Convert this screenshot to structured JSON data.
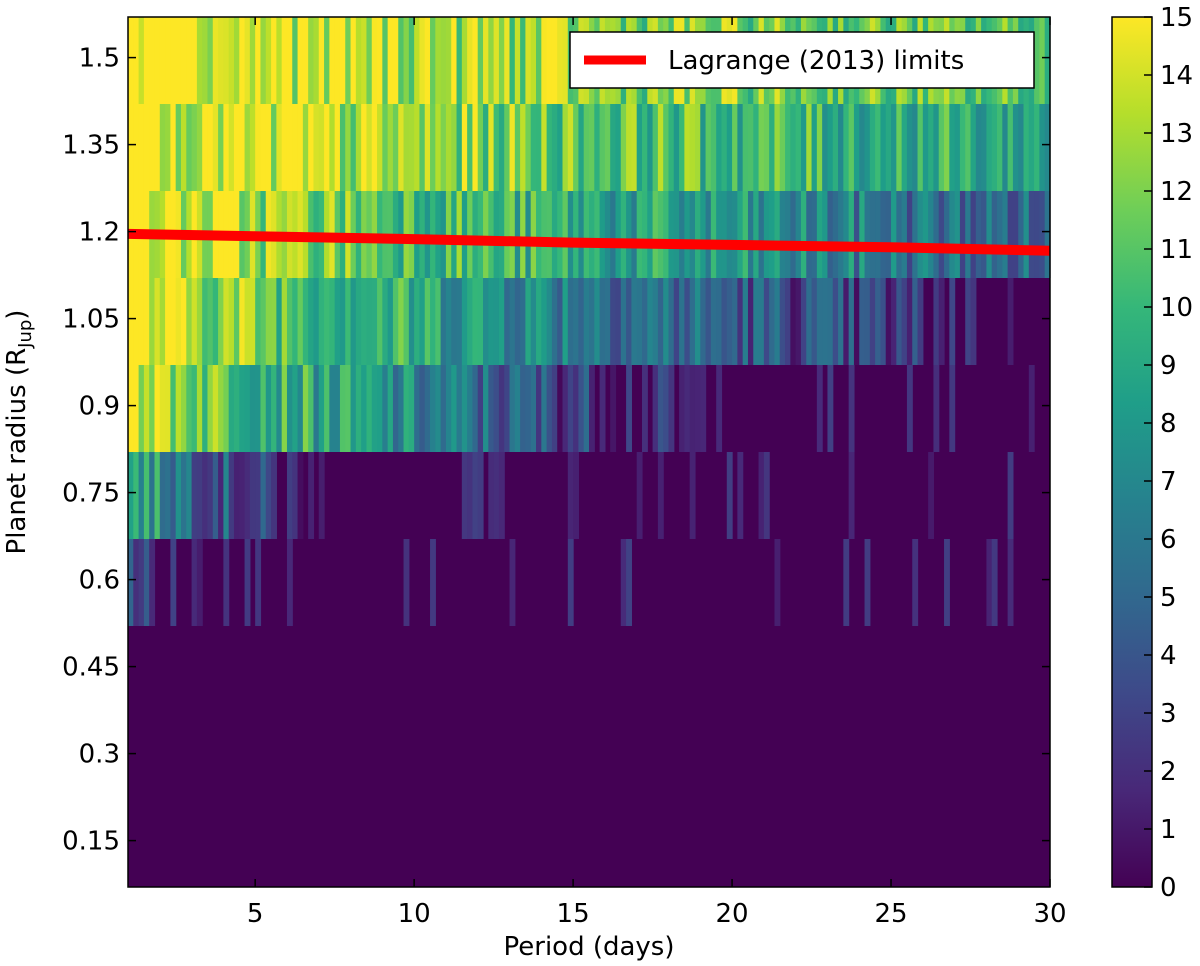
{
  "chart_data": {
    "type": "heatmap",
    "xlabel": "Period (days)",
    "ylabel_main": "Planet radius (R",
    "ylabel_sub": "Jup",
    "ylabel_close": ")",
    "xlim": [
      1,
      30
    ],
    "ylim": [
      0.07,
      1.57
    ],
    "x_ticks": [
      5,
      10,
      15,
      20,
      25,
      30
    ],
    "y_ticks": [
      0.15,
      0.3,
      0.45,
      0.6,
      0.75,
      0.9,
      1.05,
      1.2,
      1.35,
      1.5
    ],
    "y_tick_labels": [
      "0.15",
      "0.3",
      "0.45",
      "0.6",
      "0.75",
      "0.9",
      "1.05",
      "1.2",
      "1.35",
      "1.5"
    ],
    "radius_bins": [
      0.52,
      0.67,
      0.82,
      0.97,
      1.12,
      1.27,
      1.42,
      1.57
    ],
    "band_profiles": [
      {
        "lower": 0.52,
        "upper": 0.67,
        "start": 5.0,
        "end": 0.0,
        "cut": 1.9,
        "floor": 0.0
      },
      {
        "lower": 0.67,
        "upper": 0.82,
        "start": 10.0,
        "end": 0.0,
        "cut": 6.8,
        "floor": 0.0
      },
      {
        "lower": 0.82,
        "upper": 0.97,
        "start": 15.0,
        "end": 0.0,
        "cut": 19.5,
        "floor": 0.0
      },
      {
        "lower": 0.97,
        "upper": 1.12,
        "start": 15.0,
        "end": 1.0,
        "cut": 28.0,
        "floor": 0.0
      },
      {
        "lower": 1.12,
        "upper": 1.27,
        "start": 15.0,
        "end": 4.5,
        "cut": 30.0,
        "floor": 3.0
      },
      {
        "lower": 1.27,
        "upper": 1.42,
        "start": 15.0,
        "end": 8.5,
        "cut": 30.0,
        "floor": 7.0
      },
      {
        "lower": 1.42,
        "upper": 1.57,
        "start": 15.0,
        "end": 10.5,
        "cut": 30.0,
        "floor": 9.0
      }
    ],
    "colorbar": {
      "min": 0,
      "max": 15,
      "ticks": [
        0,
        1,
        2,
        3,
        4,
        5,
        6,
        7,
        8,
        9,
        10,
        11,
        12,
        13,
        14,
        15
      ]
    },
    "colormap": [
      "#440154",
      "#482878",
      "#3e4989",
      "#31688e",
      "#26828e",
      "#1f9e89",
      "#35b779",
      "#6ece58",
      "#b5de2b",
      "#fde725"
    ],
    "line": {
      "name": "Lagrange (2013) limits",
      "color": "#ff0000",
      "x": [
        1,
        5,
        10,
        15,
        20,
        25,
        30
      ],
      "y": [
        1.196,
        1.192,
        1.187,
        1.181,
        1.177,
        1.173,
        1.167
      ]
    },
    "legend_position": "top-right"
  }
}
